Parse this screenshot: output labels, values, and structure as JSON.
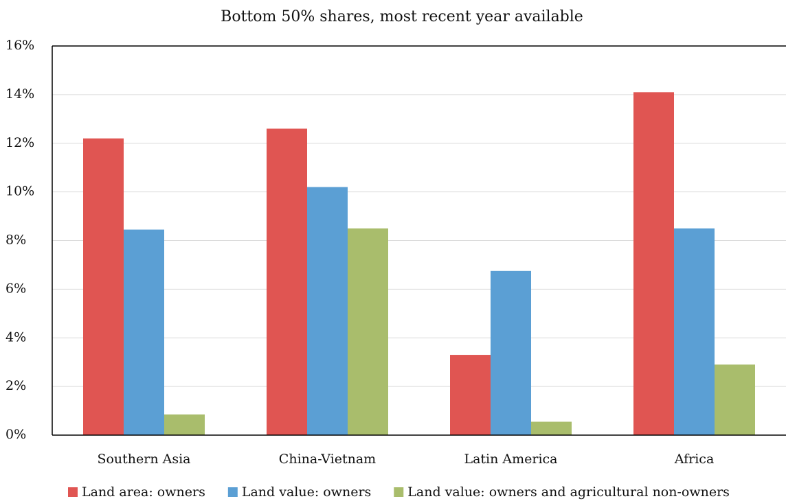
{
  "chart_data": {
    "type": "bar",
    "title": "Bottom 50% shares, most recent year available",
    "categories": [
      "Southern Asia",
      "China-Vietnam",
      "Latin America",
      "Africa"
    ],
    "series": [
      {
        "name": "Land area: owners",
        "color": "#e05552",
        "values": [
          12.2,
          12.6,
          3.3,
          14.1
        ]
      },
      {
        "name": "Land value: owners",
        "color": "#5b9fd4",
        "values": [
          8.45,
          10.2,
          6.75,
          8.5
        ]
      },
      {
        "name": "Land value: owners and agricultural non-owners",
        "color": "#a9bd6c",
        "values": [
          0.85,
          8.5,
          0.55,
          2.9
        ]
      }
    ],
    "ylim": [
      0,
      16
    ],
    "yticks": [
      {
        "value": 0,
        "label": "0%"
      },
      {
        "value": 2,
        "label": "2%"
      },
      {
        "value": 4,
        "label": "4%"
      },
      {
        "value": 6,
        "label": "6%"
      },
      {
        "value": 8,
        "label": "8%"
      },
      {
        "value": 10,
        "label": "10%"
      },
      {
        "value": 12,
        "label": "12%"
      },
      {
        "value": 14,
        "label": "14%"
      },
      {
        "value": 16,
        "label": "16%"
      }
    ],
    "grid": true,
    "legend": "bottom"
  }
}
